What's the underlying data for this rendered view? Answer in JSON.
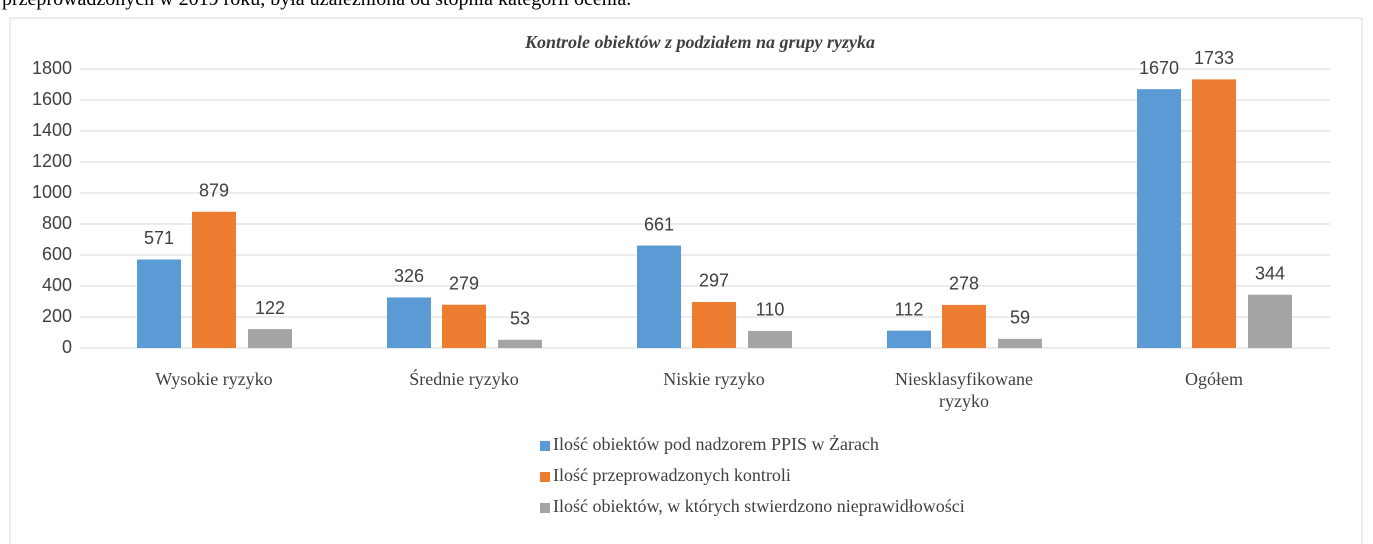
{
  "header_text": "przeprowadzonych w 2019 roku, była uzależniona od stopnia kategorii ocenia.",
  "chart_data": {
    "type": "bar",
    "title": "Kontrole obiektów z podziałem na grupy ryzyka",
    "categories": [
      "Wysokie ryzyko",
      "Średnie ryzyko",
      "Niskie ryzyko",
      "Niesklasyfikowane ryzyko",
      "Ogółem"
    ],
    "series": [
      {
        "name": "Ilość obiektów pod nadzorem PPIS w Żarach",
        "color": "#5b9bd5",
        "values": [
          571,
          326,
          661,
          112,
          1670
        ]
      },
      {
        "name": "Ilość przeprowadzonych kontroli",
        "color": "#ed7d31",
        "values": [
          879,
          279,
          297,
          278,
          1733
        ]
      },
      {
        "name": "Ilość obiektów, w których stwierdzono nieprawidłowości",
        "color": "#a5a5a5",
        "values": [
          122,
          53,
          110,
          59,
          344
        ]
      }
    ],
    "ylim": [
      0,
      1800
    ],
    "yticks": [
      0,
      200,
      400,
      600,
      800,
      1000,
      1200,
      1400,
      1600,
      1800
    ],
    "grid": true,
    "legend": "bottom"
  }
}
